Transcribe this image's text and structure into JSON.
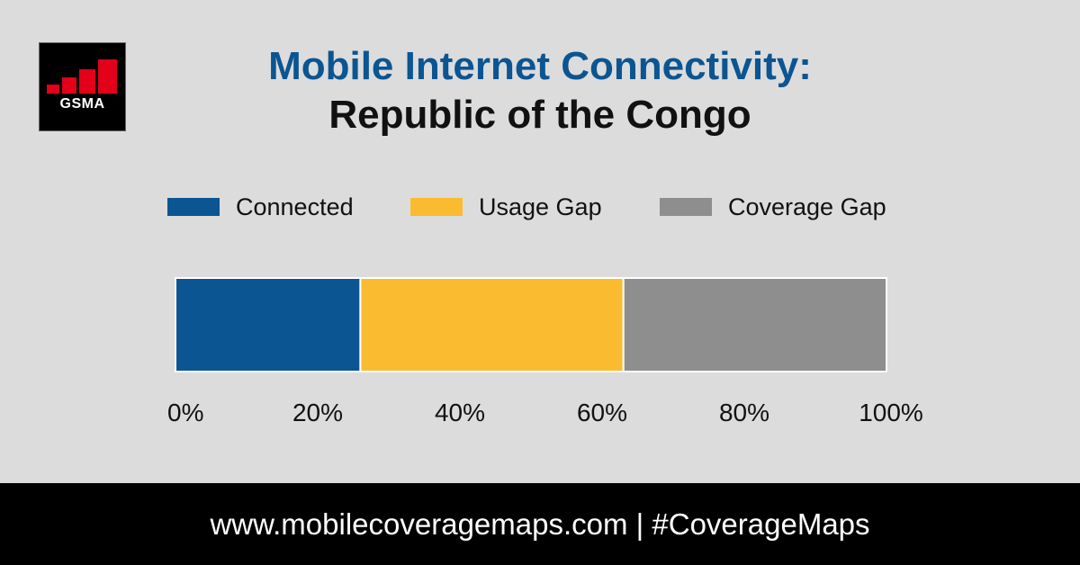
{
  "logo": {
    "text": "GSMA"
  },
  "header": {
    "title_line1": "Mobile Internet Connectivity:",
    "title_line2": "Republic of the Congo"
  },
  "legend": [
    {
      "label": "Connected",
      "color": "#0b5592"
    },
    {
      "label": "Usage Gap",
      "color": "#fbbb31"
    },
    {
      "label": "Coverage Gap",
      "color": "#8e8e8e"
    }
  ],
  "chart_data": {
    "type": "bar",
    "orientation": "horizontal-stacked",
    "title": "Mobile Internet Connectivity: Republic of the Congo",
    "categories": [
      ""
    ],
    "series": [
      {
        "name": "Connected",
        "values": [
          26
        ],
        "color": "#0b5592"
      },
      {
        "name": "Usage Gap",
        "values": [
          37
        ],
        "color": "#fbbb31"
      },
      {
        "name": "Coverage Gap",
        "values": [
          37
        ],
        "color": "#8e8e8e"
      }
    ],
    "xlim": [
      0,
      100
    ],
    "ticks": [
      "0%",
      "20%",
      "40%",
      "60%",
      "80%",
      "100%"
    ],
    "grid": false,
    "legend_position": "top"
  },
  "footer": {
    "text": "www.mobilecoveragemaps.com | #CoverageMaps"
  }
}
